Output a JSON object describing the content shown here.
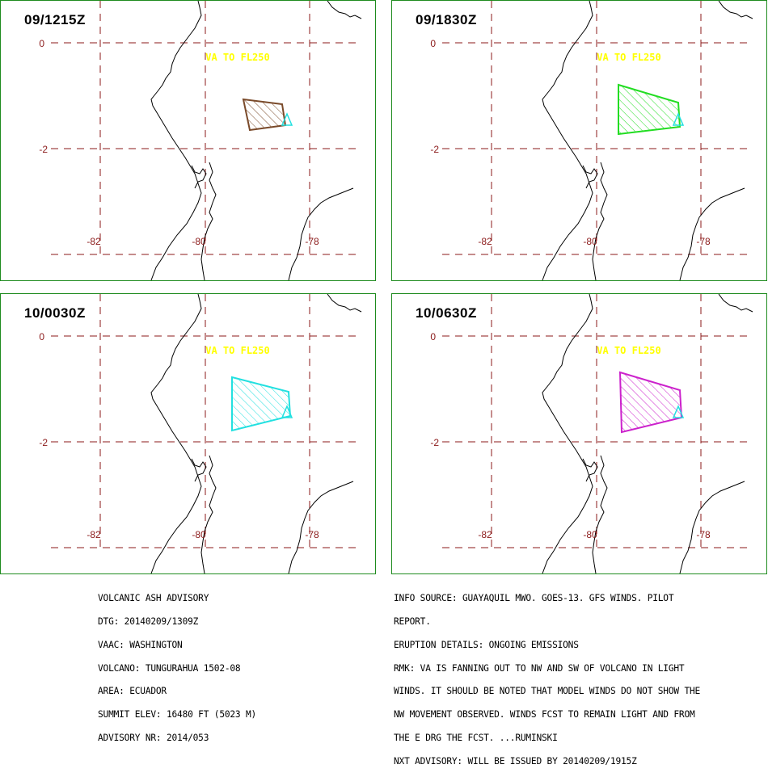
{
  "panels": [
    {
      "title": "09/1215Z",
      "va_label": "VA TO FL250",
      "ash_color": "#7a4a2a"
    },
    {
      "title": "09/1830Z",
      "va_label": "VA TO FL250",
      "ash_color": "#22dd22"
    },
    {
      "title": "10/0030Z",
      "va_label": "VA TO FL250",
      "ash_color": "#22e0e0"
    },
    {
      "title": "10/0630Z",
      "va_label": "VA TO FL250",
      "ash_color": "#cc22cc"
    }
  ],
  "map": {
    "lat_labels": [
      "0",
      "-2"
    ],
    "lon_labels": [
      "-82",
      "-80",
      "-78"
    ],
    "grid_color": "#8b1a1a",
    "coast_color": "#000000",
    "volcano_color": "#22e0e0",
    "va_label_color": "#ffff00"
  },
  "advisory": {
    "left_lines": [
      "VOLCANIC ASH ADVISORY",
      "DTG: 20140209/1309Z",
      "VAAC: WASHINGTON",
      "VOLCANO: TUNGURAHUA 1502-08",
      "AREA: ECUADOR",
      "SUMMIT ELEV: 16480 FT (5023 M)",
      "ADVISORY NR: 2014/053"
    ],
    "right_lines": [
      "INFO SOURCE: GUAYAQUIL MWO. GOES-13. GFS WINDS. PILOT",
      "REPORT.",
      "ERUPTION DETAILS: ONGOING EMISSIONS",
      "RMK: VA IS FANNING OUT TO NW AND SW OF VOLCANO IN LIGHT",
      "WINDS. IT SHOULD BE NOTED THAT MODEL WINDS DO NOT SHOW THE",
      "NW MOVEMENT OBSERVED. WINDS FCST TO REMAIN LIGHT AND FROM",
      "THE E DRG THE FCST. ...RUMINSKI",
      "NXT ADVISORY: WILL BE ISSUED BY 20140209/1915Z"
    ]
  }
}
